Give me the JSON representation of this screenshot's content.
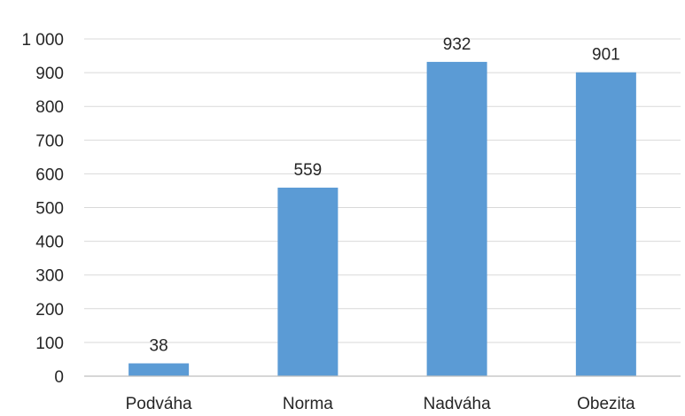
{
  "chart_data": {
    "type": "bar",
    "categories": [
      "Podváha",
      "Norma",
      "Nadváha",
      "Obezita"
    ],
    "values": [
      38,
      559,
      932,
      901
    ],
    "data_labels": [
      "38",
      "559",
      "932",
      "901"
    ],
    "y_ticks": [
      0,
      100,
      200,
      300,
      400,
      500,
      600,
      700,
      800,
      900,
      1000
    ],
    "y_tick_labels": [
      "0",
      "100",
      "200",
      "300",
      "400",
      "500",
      "600",
      "700",
      "800",
      "900",
      "1 000"
    ],
    "ylim": [
      0,
      1000
    ],
    "grid": true,
    "legend": "none",
    "bar_color": "#5b9bd5"
  }
}
